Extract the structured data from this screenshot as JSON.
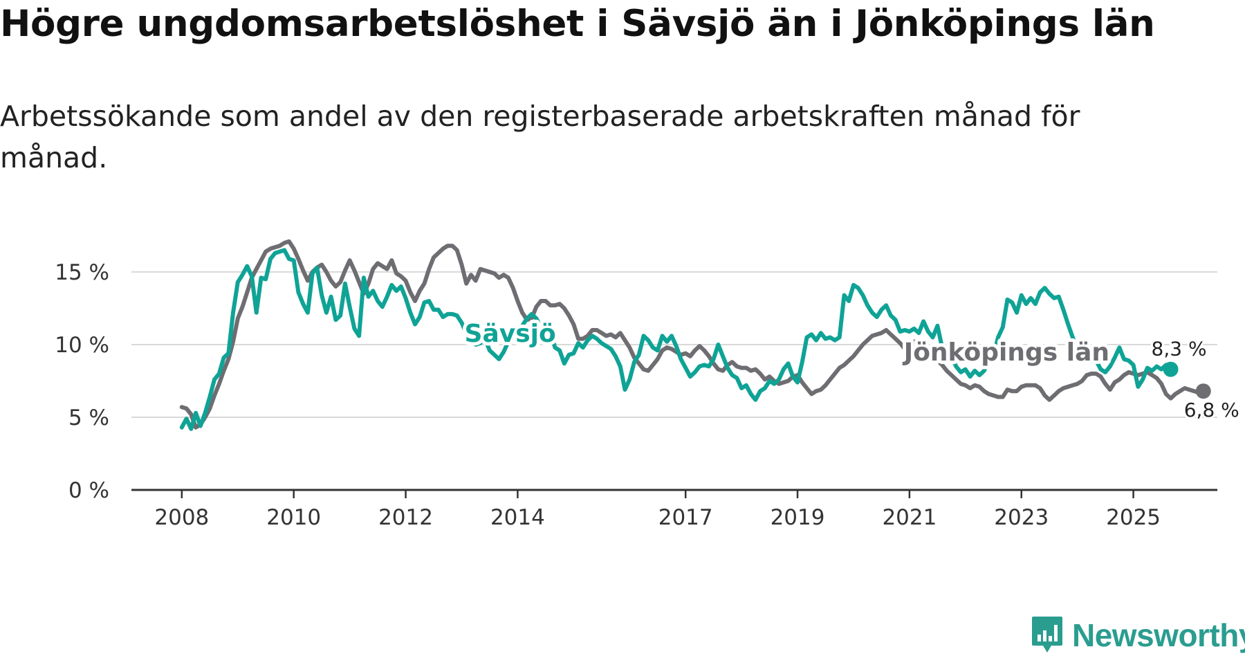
{
  "title": "Högre ungdomsarbetslöshet i Sävsjö än i Jönköpings län",
  "subtitle": "Arbetssökande som andel av den registerbaserade arbetskraften månad för månad.",
  "logo": {
    "text": "Newsworthy",
    "icon": "newsworthy-chart-icon"
  },
  "colors": {
    "savsjo": "#0fa396",
    "lan": "#6e6d72",
    "grid": "#d9d9d9",
    "axis": "#333333"
  },
  "chart_data": {
    "type": "line",
    "x_start": 2008.0,
    "x_step_months": 1,
    "xlim": [
      2007.1,
      2026.5
    ],
    "ylim": [
      0,
      18
    ],
    "y_ticks": [
      0,
      5,
      10,
      15
    ],
    "y_tick_labels": [
      "0 %",
      "5 %",
      "10 %",
      "15 %"
    ],
    "x_ticks": [
      2008,
      2010,
      2012,
      2014,
      2017,
      2019,
      2021,
      2023,
      2025
    ],
    "x_tick_labels": [
      "2008",
      "2010",
      "2012",
      "2014",
      "2017",
      "2019",
      "2021",
      "2023",
      "2025"
    ],
    "series": [
      {
        "name": "Jönköpings län",
        "end_label": "6,8 %",
        "anchor": [
          2020.9,
          8.9
        ],
        "values": [
          5.7,
          5.6,
          5.2,
          4.3,
          4.5,
          5.0,
          5.6,
          6.5,
          7.3,
          8.2,
          9.0,
          10.2,
          11.8,
          12.6,
          13.6,
          14.6,
          15.2,
          15.8,
          16.4,
          16.6,
          16.7,
          16.8,
          17.0,
          17.1,
          16.6,
          15.9,
          15.1,
          14.4,
          15.0,
          15.3,
          15.5,
          15.0,
          14.4,
          14.0,
          14.3,
          15.1,
          15.8,
          15.1,
          14.3,
          13.5,
          14.2,
          15.2,
          15.6,
          15.4,
          15.2,
          15.8,
          14.9,
          14.7,
          14.4,
          13.6,
          13.0,
          13.7,
          14.2,
          15.2,
          16.0,
          16.3,
          16.6,
          16.8,
          16.8,
          16.5,
          15.5,
          14.2,
          14.8,
          14.4,
          15.2,
          15.1,
          15.0,
          14.9,
          14.6,
          14.8,
          14.6,
          13.9,
          13.0,
          12.2,
          11.7,
          11.8,
          12.6,
          13.0,
          13.0,
          12.7,
          12.7,
          12.8,
          12.5,
          12.0,
          11.4,
          10.4,
          10.4,
          10.6,
          11.0,
          11.0,
          10.8,
          10.6,
          10.7,
          10.5,
          10.8,
          10.3,
          9.8,
          9.1,
          8.7,
          8.3,
          8.2,
          8.6,
          9.0,
          9.6,
          9.8,
          9.7,
          9.5,
          9.3,
          9.4,
          9.2,
          9.6,
          9.9,
          9.6,
          9.2,
          8.7,
          8.3,
          8.2,
          8.6,
          8.8,
          8.5,
          8.4,
          8.4,
          8.2,
          8.3,
          8.0,
          7.6,
          7.8,
          7.5,
          7.3,
          7.4,
          7.5,
          7.8,
          7.9,
          7.4,
          7.0,
          6.6,
          6.8,
          6.9,
          7.2,
          7.6,
          8.0,
          8.4,
          8.6,
          8.9,
          9.2,
          9.6,
          10.0,
          10.3,
          10.6,
          10.7,
          10.8,
          11.0,
          10.7,
          10.4,
          10.1,
          9.7,
          9.8,
          10.2,
          10.3,
          10.0,
          9.6,
          9.2,
          8.9,
          8.6,
          8.2,
          7.9,
          7.6,
          7.3,
          7.2,
          7.0,
          7.2,
          7.1,
          6.8,
          6.6,
          6.5,
          6.4,
          6.4,
          6.9,
          6.8,
          6.8,
          7.1,
          7.2,
          7.2,
          7.2,
          7.0,
          6.5,
          6.2,
          6.5,
          6.8,
          7.0,
          7.1,
          7.2,
          7.3,
          7.5,
          7.9,
          8.0,
          8.0,
          7.8,
          7.3,
          6.9,
          7.4,
          7.6,
          7.9,
          8.1,
          8.0,
          7.9,
          8.0,
          8.1,
          7.9,
          7.7,
          7.3,
          6.6,
          6.3,
          6.6,
          6.8,
          7.0,
          6.9,
          6.8,
          6.7,
          6.8
        ]
      },
      {
        "name": "Sävsjö",
        "end_label": "8,3 %",
        "anchor": [
          2013.05,
          10.2
        ],
        "values": [
          4.3,
          4.9,
          4.2,
          5.3,
          4.4,
          5.3,
          6.4,
          7.6,
          8.0,
          9.1,
          9.4,
          12.2,
          14.3,
          14.8,
          15.4,
          14.7,
          12.2,
          14.6,
          14.5,
          15.9,
          16.3,
          16.4,
          16.5,
          15.9,
          15.8,
          13.6,
          12.8,
          12.2,
          14.9,
          15.3,
          13.4,
          12.2,
          13.3,
          11.7,
          12.0,
          14.2,
          12.6,
          11.1,
          10.6,
          14.6,
          13.3,
          13.7,
          13.0,
          12.6,
          13.3,
          14.1,
          13.7,
          14.0,
          13.2,
          12.2,
          11.4,
          11.9,
          12.9,
          13.0,
          12.4,
          12.4,
          11.9,
          12.1,
          12.1,
          12.0,
          11.5,
          10.8,
          10.3,
          10.0,
          10.1,
          10.4,
          9.6,
          9.3,
          9.0,
          9.5,
          10.2,
          10.6,
          10.8,
          11.3,
          11.8,
          12.1,
          11.8,
          11.2,
          10.5,
          10.9,
          9.8,
          9.6,
          8.7,
          9.3,
          9.4,
          10.1,
          9.8,
          10.3,
          10.6,
          10.4,
          10.1,
          9.9,
          9.7,
          9.2,
          8.5,
          6.9,
          7.6,
          8.8,
          9.3,
          10.6,
          10.3,
          9.8,
          9.6,
          10.6,
          10.2,
          10.6,
          9.9,
          9.0,
          8.4,
          7.8,
          8.1,
          8.5,
          8.6,
          8.5,
          9.0,
          10.0,
          9.2,
          8.4,
          7.9,
          7.7,
          7.0,
          7.2,
          6.6,
          6.2,
          6.8,
          7.0,
          7.5,
          7.3,
          7.6,
          8.3,
          8.7,
          7.8,
          7.4,
          8.8,
          10.5,
          10.7,
          10.3,
          10.8,
          10.4,
          10.5,
          10.3,
          10.5,
          13.4,
          13.0,
          14.1,
          13.9,
          13.4,
          12.7,
          12.2,
          11.9,
          12.4,
          12.7,
          12.0,
          11.7,
          10.9,
          11.0,
          10.9,
          11.1,
          10.8,
          11.6,
          10.9,
          10.5,
          11.3,
          9.8,
          9.6,
          9.2,
          8.5,
          8.1,
          8.3,
          7.8,
          8.2,
          7.9,
          8.2,
          8.9,
          9.2,
          10.5,
          11.2,
          13.1,
          12.9,
          12.2,
          13.4,
          12.8,
          13.2,
          12.8,
          13.6,
          13.9,
          13.5,
          13.2,
          13.3,
          12.4,
          11.4,
          10.5,
          9.5,
          9.9,
          9.6,
          9.1,
          8.9,
          8.3,
          8.1,
          8.5,
          9.1,
          9.8,
          9.0,
          8.9,
          8.6,
          7.1,
          7.6,
          8.4,
          8.2,
          8.5,
          8.3,
          8.6,
          8.3
        ]
      }
    ]
  }
}
